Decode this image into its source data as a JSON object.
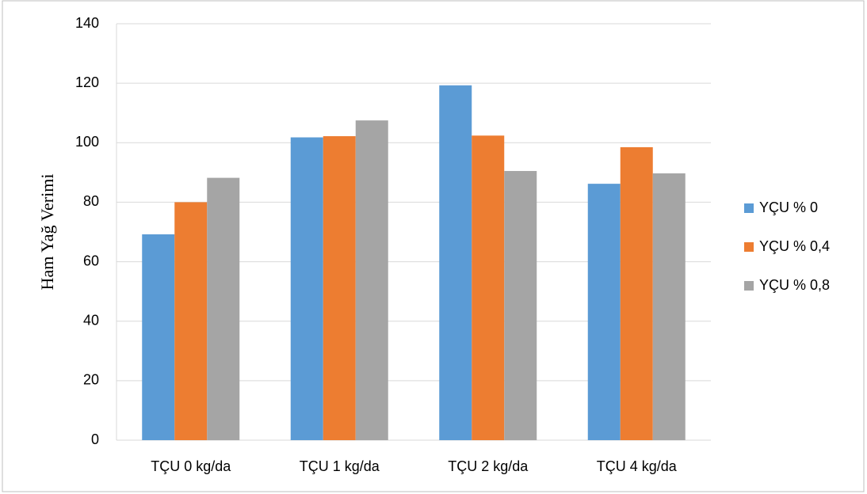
{
  "chart_data": {
    "type": "bar",
    "y_label": "Ham Yağ Verimi",
    "categories": [
      "TÇU 0 kg/da",
      "TÇU 1 kg/da",
      "TÇU 2 kg/da",
      "TÇU 4 kg/da"
    ],
    "series": [
      {
        "name": "YÇU % 0",
        "color": "#5b9bd5",
        "values": [
          69.2,
          101.8,
          119.3,
          86.2
        ]
      },
      {
        "name": "YÇU % 0,4",
        "color": "#ed7d31",
        "values": [
          80,
          102.2,
          102.4,
          98.5
        ]
      },
      {
        "name": "YÇU % 0,8",
        "color": "#a5a5a5",
        "values": [
          88.2,
          107.5,
          90.5,
          89.7
        ]
      }
    ],
    "ylim": [
      0,
      140
    ],
    "yticks": [
      0,
      20,
      40,
      60,
      80,
      100,
      120,
      140
    ],
    "grid": true,
    "legend": "right"
  }
}
